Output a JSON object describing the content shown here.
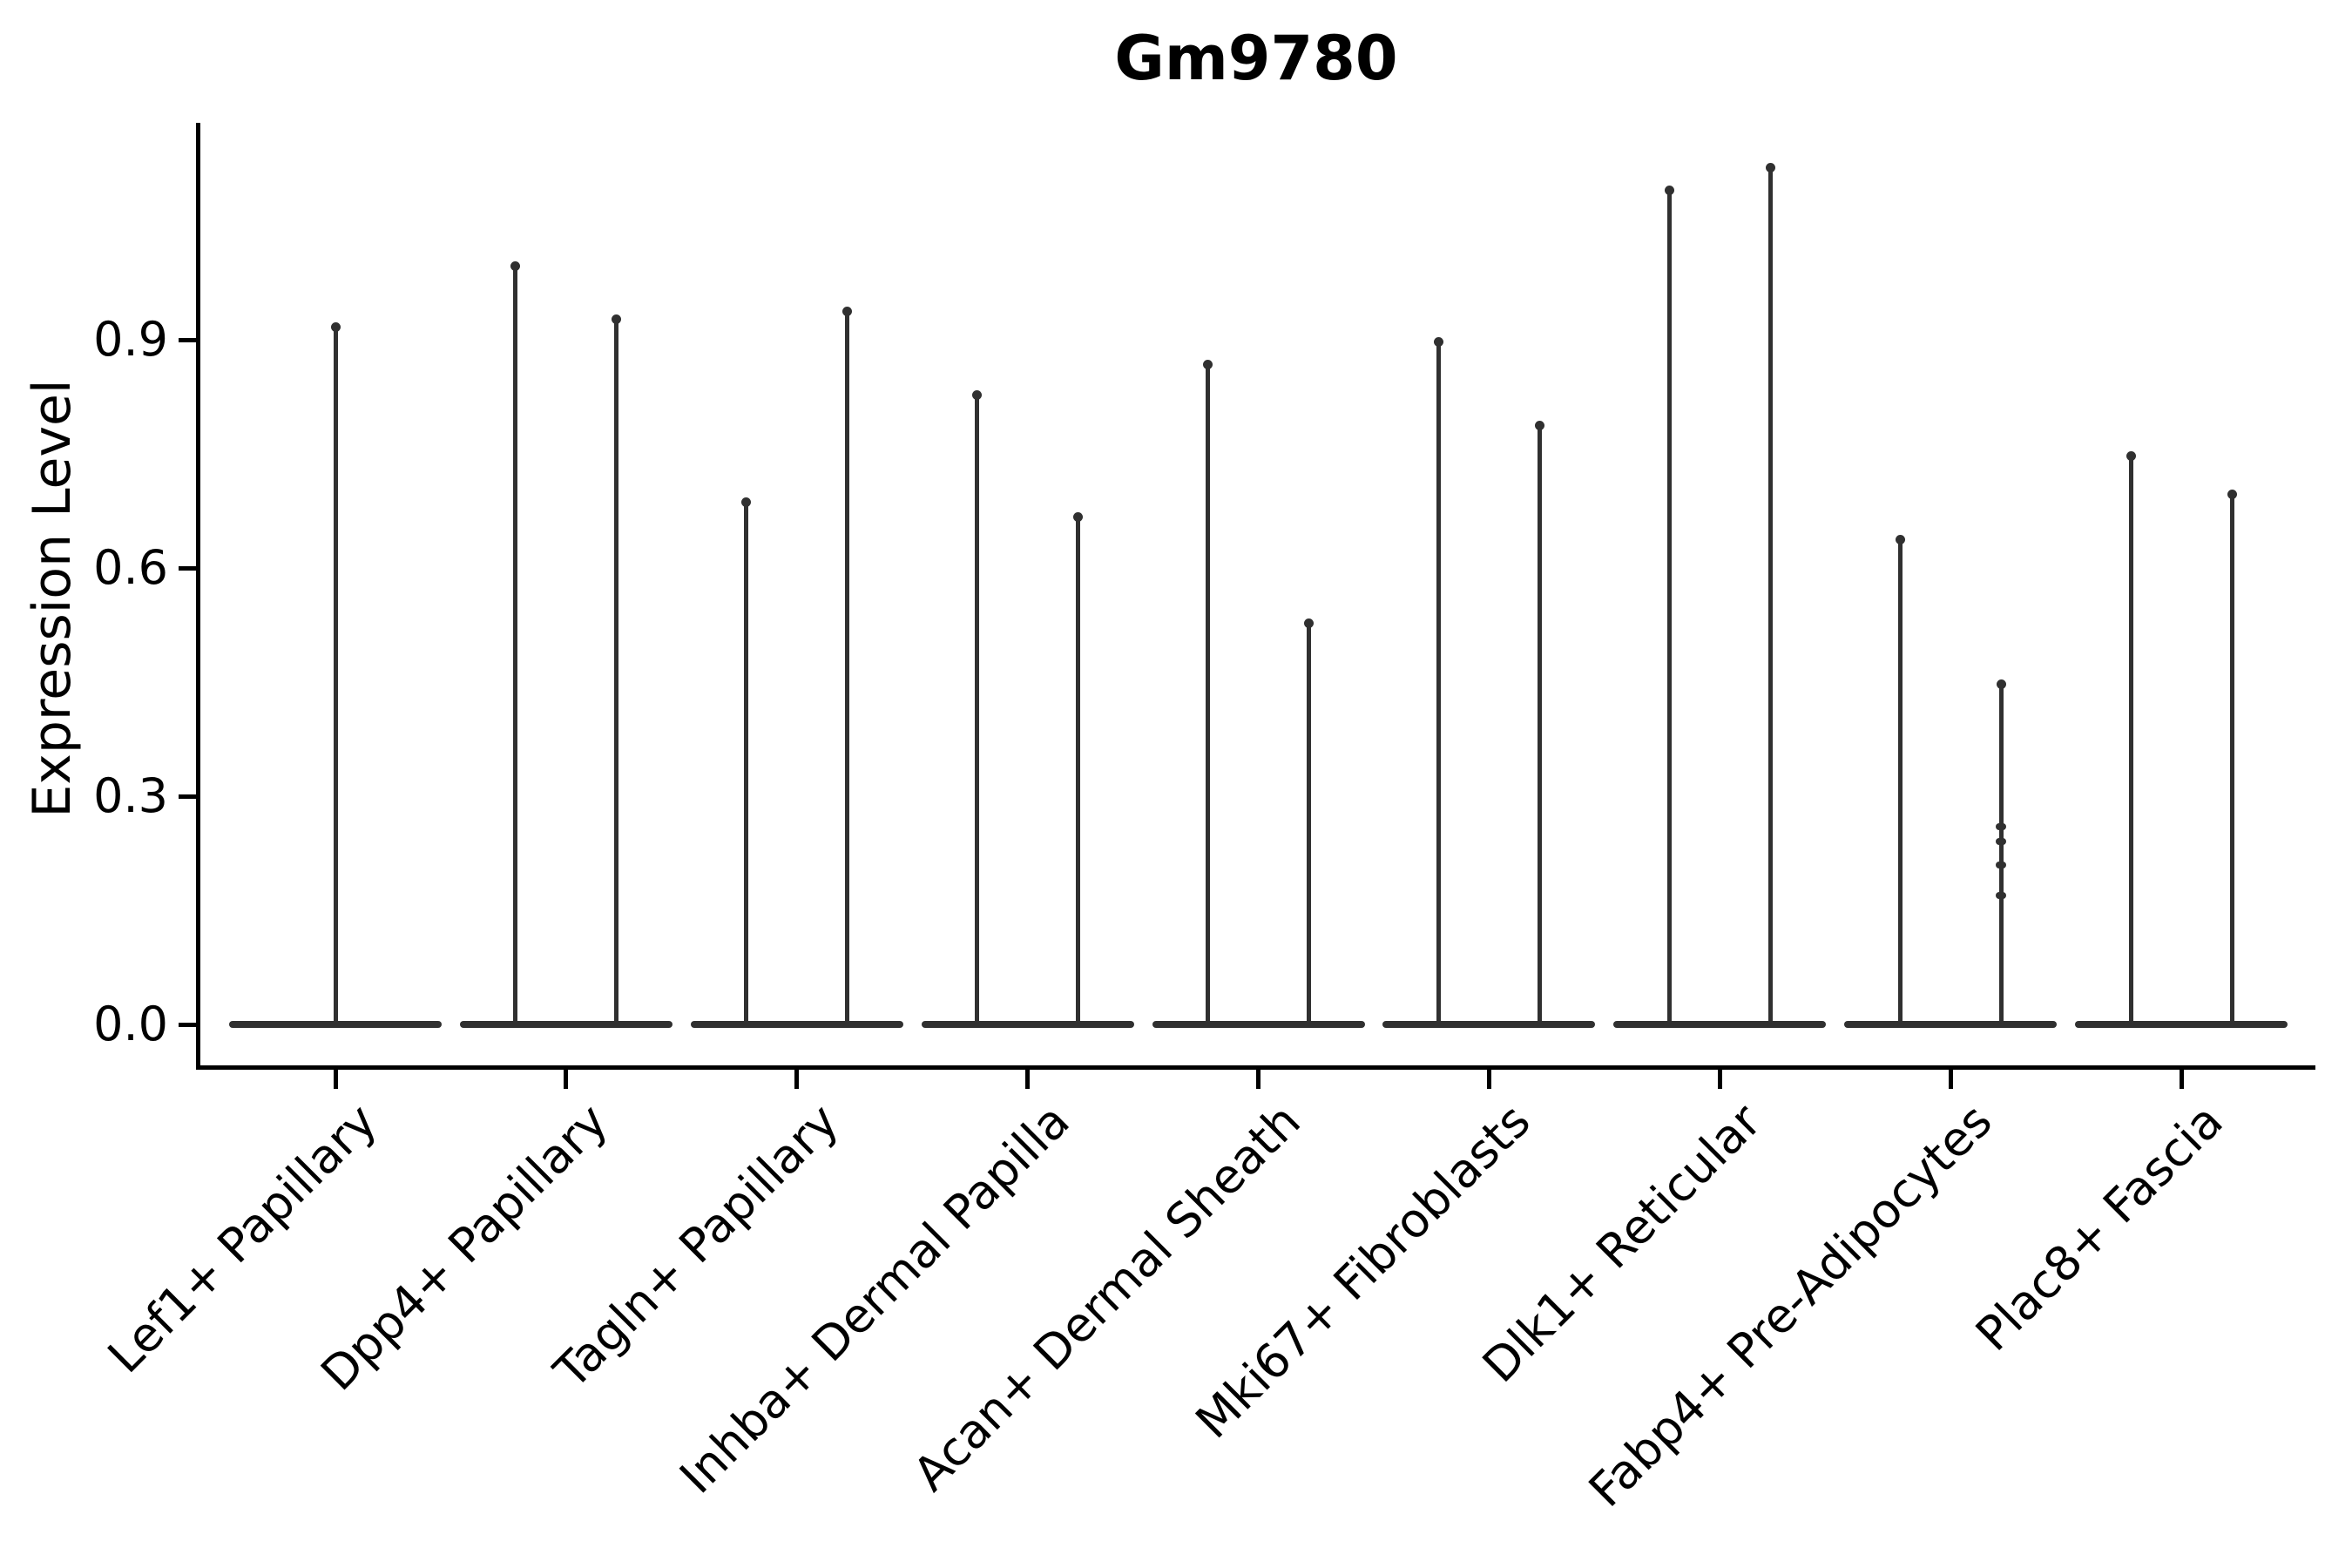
{
  "title": "Gm9780",
  "y_axis": {
    "label": "Expression Level",
    "tick_labels": [
      "0.0",
      "0.3",
      "0.6",
      "0.9"
    ],
    "tick_values": [
      0.0,
      0.3,
      0.6,
      0.9
    ]
  },
  "x_axis": {
    "categories": [
      "Lef1+ Papillary",
      "Dpp4+ Papillary",
      "Tagln+ Papillary",
      "Inhba+ Dermal Papilla",
      "Acan+ Dermal Sheath",
      "Mki67+ Fibroblasts",
      "Dlk1+ Reticular",
      "Fabp4+ Pre-Adipocytes",
      "Plac8+ Fascia"
    ]
  },
  "chart_data": {
    "type": "violin",
    "title": "Gm9780",
    "xlabel": "",
    "ylabel": "Expression Level",
    "ylim": [
      -0.05,
      1.19
    ],
    "yticks": [
      0.0,
      0.3,
      0.6,
      0.9
    ],
    "grid": false,
    "legend": null,
    "style_note": "Single-cell expression violins: nearly all density sits at 0 (flat wide base per cell type) with extremely thin needle spikes rising to the maximum expression values; black left/bottom spines only; x labels rotated 45 degrees.",
    "categories": [
      "Lef1+ Papillary",
      "Dpp4+ Papillary",
      "Tagln+ Papillary",
      "Inhba+ Dermal Papilla",
      "Acan+ Dermal Sheath",
      "Mki67+ Fibroblasts",
      "Dlk1+ Reticular",
      "Fabp4+ Pre-Adipocytes",
      "Plac8+ Fascia"
    ],
    "violins": [
      {
        "category": "Lef1+ Papillary",
        "base_value": 0.0,
        "needles": [
          {
            "pos": "center",
            "max": 0.92
          }
        ]
      },
      {
        "category": "Dpp4+ Papillary",
        "base_value": 0.0,
        "needles": [
          {
            "pos": "left",
            "max": 1.0
          },
          {
            "pos": "right",
            "max": 0.93
          }
        ]
      },
      {
        "category": "Tagln+ Papillary",
        "base_value": 0.0,
        "needles": [
          {
            "pos": "left",
            "max": 0.69
          },
          {
            "pos": "right",
            "max": 0.94
          }
        ]
      },
      {
        "category": "Inhba+ Dermal Papilla",
        "base_value": 0.0,
        "needles": [
          {
            "pos": "left",
            "max": 0.83
          },
          {
            "pos": "right",
            "max": 0.67
          }
        ]
      },
      {
        "category": "Acan+ Dermal Sheath",
        "base_value": 0.0,
        "needles": [
          {
            "pos": "left",
            "max": 0.87
          },
          {
            "pos": "right",
            "max": 0.53
          }
        ]
      },
      {
        "category": "Mki67+ Fibroblasts",
        "base_value": 0.0,
        "needles": [
          {
            "pos": "left",
            "max": 0.9
          },
          {
            "pos": "right",
            "max": 0.79
          }
        ]
      },
      {
        "category": "Dlk1+ Reticular",
        "base_value": 0.0,
        "needles": [
          {
            "pos": "left",
            "max": 1.1
          },
          {
            "pos": "right",
            "max": 1.13
          }
        ]
      },
      {
        "category": "Fabp4+ Pre-Adipocytes",
        "base_value": 0.0,
        "needles": [
          {
            "pos": "left",
            "max": 0.64
          },
          {
            "pos": "right",
            "max": 0.45,
            "dots": [
              0.26,
              0.24,
              0.21,
              0.17
            ]
          }
        ]
      },
      {
        "category": "Plac8+ Fascia",
        "base_value": 0.0,
        "needles": [
          {
            "pos": "left",
            "max": 0.75
          },
          {
            "pos": "right",
            "max": 0.7
          }
        ]
      }
    ],
    "colors": {
      "violin": "#303030",
      "axis": "#000000",
      "text": "#000000",
      "background": "#ffffff"
    }
  }
}
